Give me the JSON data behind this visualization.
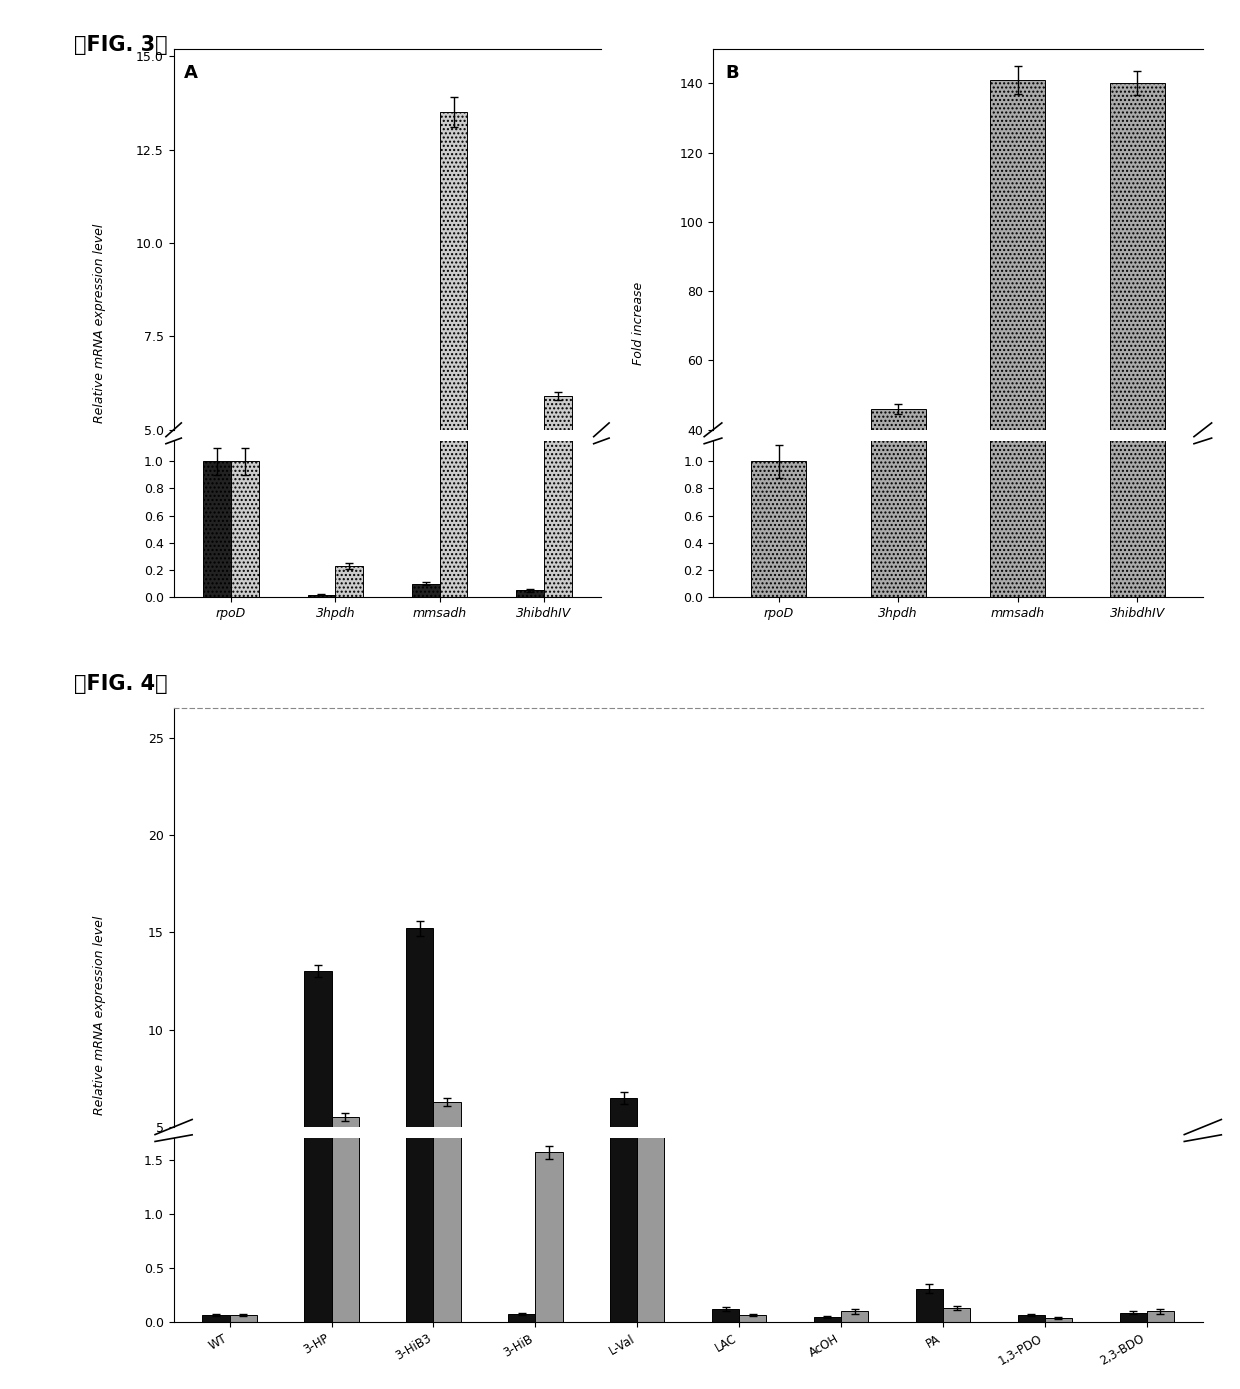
{
  "fig3A": {
    "categories": [
      "rpoD",
      "3hpdh",
      "mmsadh",
      "3hibdhIV"
    ],
    "bar1_values": [
      1.0,
      0.02,
      0.1,
      0.05
    ],
    "bar1_errors": [
      0.1,
      0.005,
      0.01,
      0.01
    ],
    "bar2_values": [
      1.0,
      0.23,
      13.5,
      5.9
    ],
    "bar2_errors": [
      0.1,
      0.02,
      0.4,
      0.1
    ],
    "bar1_color": "#222222",
    "bar2_color": "#cccccc",
    "bar1_hatch": "....",
    "bar2_hatch": "....",
    "ylabel": "Relative mRNA expression level",
    "label": "A",
    "ylim_low": [
      0.0,
      1.15
    ],
    "ylim_high": [
      5.0,
      15.2
    ],
    "yticks_low": [
      0.0,
      0.2,
      0.4,
      0.6,
      0.8,
      1.0
    ],
    "yticks_high": [
      5.0,
      7.5,
      10.0,
      12.5,
      15.0
    ]
  },
  "fig3B": {
    "categories": [
      "rpoD",
      "3hpdh",
      "mmsadh",
      "3hibdhIV"
    ],
    "bar_values": [
      1.0,
      46.0,
      141.0,
      140.0
    ],
    "bar_errors": [
      0.12,
      1.5,
      4.0,
      3.5
    ],
    "bar_color": "#aaaaaa",
    "bar_hatch": "....",
    "ylabel": "Fold increase",
    "label": "B",
    "ylim_low": [
      0.0,
      1.15
    ],
    "ylim_high": [
      40.0,
      150.0
    ],
    "yticks_low": [
      0.0,
      0.2,
      0.4,
      0.6,
      0.8,
      1.0
    ],
    "yticks_high": [
      40.0,
      60.0,
      80.0,
      100.0,
      120.0,
      140.0
    ]
  },
  "fig4": {
    "categories": [
      "WT",
      "3-HP",
      "3-HiB3",
      "3-HiB",
      "L-Val",
      "LAC",
      "AcOH",
      "PA",
      "1,3-PDO",
      "2,3-BDO"
    ],
    "bar1_values": [
      0.07,
      13.0,
      15.2,
      0.08,
      6.5,
      0.12,
      0.05,
      0.31,
      0.07,
      0.09
    ],
    "bar1_errors": [
      0.01,
      0.3,
      0.4,
      0.01,
      0.3,
      0.02,
      0.01,
      0.04,
      0.01,
      0.01
    ],
    "bar2_values": [
      0.07,
      5.5,
      6.3,
      1.57,
      4.0,
      0.07,
      0.1,
      0.13,
      0.04,
      0.1
    ],
    "bar2_errors": [
      0.01,
      0.2,
      0.2,
      0.06,
      0.15,
      0.01,
      0.02,
      0.02,
      0.01,
      0.02
    ],
    "bar1_color": "#111111",
    "bar2_color": "#999999",
    "bar1_hatch": "",
    "bar2_hatch": "",
    "ylabel": "Relative mRNA expression level",
    "ylim_low": [
      0.0,
      1.7
    ],
    "ylim_high": [
      5.0,
      26.5
    ],
    "yticks_low": [
      0.0,
      0.5,
      1.0,
      1.5
    ],
    "yticks_high": [
      5.0,
      10.0,
      15.0,
      20.0,
      25.0
    ]
  },
  "background_color": "#ffffff"
}
